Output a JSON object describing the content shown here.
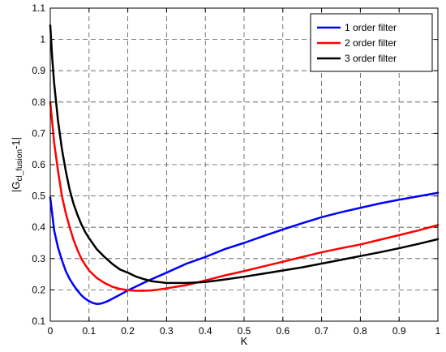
{
  "chart_data": {
    "type": "line",
    "title": "",
    "xlabel": "K",
    "ylabel": {
      "prefix": "|G",
      "subscript": "cl_fusion",
      "suffix": "-1|"
    },
    "xlim": [
      0,
      1
    ],
    "ylim": [
      0.1,
      1.1
    ],
    "xticks": [
      0,
      0.1,
      0.2,
      0.3,
      0.4,
      0.5,
      0.6,
      0.7,
      0.8,
      0.9,
      1
    ],
    "xtick_labels": [
      "0",
      "0.1",
      "0.2",
      "0.3",
      "0.4",
      "0.5",
      "0.6",
      "0.7",
      "0.8",
      "0.9",
      "1"
    ],
    "yticks": [
      0.1,
      0.2,
      0.3,
      0.4,
      0.5,
      0.6,
      0.7,
      0.8,
      0.9,
      1,
      1.1
    ],
    "ytick_labels": [
      "0.1",
      "0.2",
      "0.3",
      "0.4",
      "0.5",
      "0.6",
      "0.7",
      "0.8",
      "0.9",
      "1",
      "1.1"
    ],
    "grid": true,
    "legend_position": "top-right",
    "series": [
      {
        "name": "1 order filter",
        "color": "#0000ff",
        "x": [
          0,
          0.01,
          0.02,
          0.03,
          0.04,
          0.05,
          0.06,
          0.07,
          0.08,
          0.09,
          0.1,
          0.11,
          0.12,
          0.13,
          0.14,
          0.15,
          0.17,
          0.2,
          0.25,
          0.3,
          0.35,
          0.4,
          0.45,
          0.5,
          0.55,
          0.6,
          0.65,
          0.7,
          0.75,
          0.8,
          0.85,
          0.9,
          0.95,
          1.0
        ],
        "y": [
          0.495,
          0.39,
          0.335,
          0.295,
          0.26,
          0.235,
          0.215,
          0.198,
          0.183,
          0.172,
          0.164,
          0.158,
          0.155,
          0.156,
          0.16,
          0.165,
          0.178,
          0.198,
          0.228,
          0.255,
          0.283,
          0.305,
          0.33,
          0.35,
          0.372,
          0.393,
          0.413,
          0.432,
          0.448,
          0.462,
          0.476,
          0.488,
          0.499,
          0.51
        ]
      },
      {
        "name": "2 order filter",
        "color": "#ff0000",
        "x": [
          0,
          0.01,
          0.02,
          0.03,
          0.04,
          0.05,
          0.06,
          0.07,
          0.08,
          0.09,
          0.1,
          0.12,
          0.14,
          0.16,
          0.18,
          0.2,
          0.22,
          0.24,
          0.26,
          0.28,
          0.3,
          0.35,
          0.4,
          0.45,
          0.5,
          0.55,
          0.6,
          0.65,
          0.7,
          0.75,
          0.8,
          0.85,
          0.9,
          0.95,
          1.0
        ],
        "y": [
          0.8,
          0.67,
          0.58,
          0.5,
          0.445,
          0.4,
          0.36,
          0.328,
          0.3,
          0.28,
          0.262,
          0.238,
          0.222,
          0.21,
          0.203,
          0.199,
          0.197,
          0.197,
          0.198,
          0.201,
          0.205,
          0.215,
          0.23,
          0.246,
          0.26,
          0.275,
          0.29,
          0.305,
          0.32,
          0.333,
          0.345,
          0.36,
          0.375,
          0.39,
          0.407
        ]
      },
      {
        "name": "3 order filter",
        "color": "#000000",
        "x": [
          0,
          0.005,
          0.01,
          0.02,
          0.03,
          0.04,
          0.05,
          0.06,
          0.07,
          0.08,
          0.09,
          0.1,
          0.12,
          0.14,
          0.16,
          0.18,
          0.2,
          0.22,
          0.24,
          0.26,
          0.28,
          0.3,
          0.35,
          0.4,
          0.45,
          0.5,
          0.55,
          0.6,
          0.65,
          0.7,
          0.75,
          0.8,
          0.85,
          0.9,
          0.95,
          1.0
        ],
        "y": [
          1.045,
          0.94,
          0.86,
          0.74,
          0.65,
          0.58,
          0.52,
          0.475,
          0.44,
          0.41,
          0.385,
          0.365,
          0.33,
          0.305,
          0.283,
          0.265,
          0.255,
          0.243,
          0.235,
          0.228,
          0.225,
          0.222,
          0.222,
          0.225,
          0.233,
          0.242,
          0.252,
          0.262,
          0.272,
          0.284,
          0.296,
          0.308,
          0.32,
          0.333,
          0.347,
          0.362
        ]
      }
    ]
  }
}
